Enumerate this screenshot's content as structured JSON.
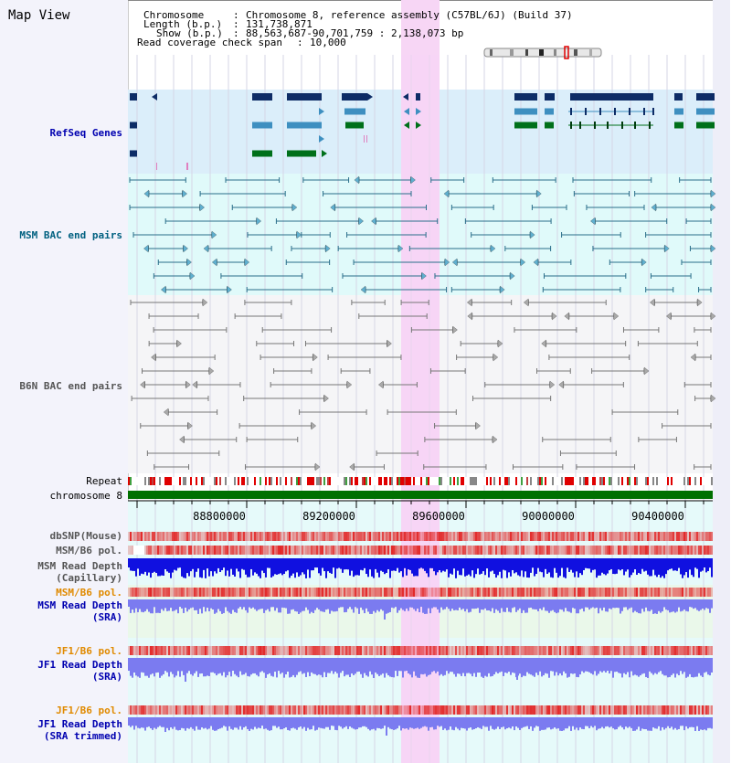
{
  "app": {
    "title": "Map View"
  },
  "info": {
    "chromosome_key": "Chromosome",
    "chromosome_value": "Chromosome 8, reference assembly (C57BL/6J) (Build 37)",
    "length_key": "Length (b.p.)",
    "length_value": "131,738,871",
    "show_key": "Show (b.p.)",
    "show_value": "88,563,687-90,701,759 : 2,138,073 bp",
    "coverage_key": "Read coverage check span",
    "coverage_value": "10,000"
  },
  "tracks": {
    "refseq": "RefSeq Genes",
    "msm_bac": "MSM BAC end pairs",
    "b6n_bac": "B6N BAC end pairs",
    "repeat": "Repeat",
    "chromosome": "chromosome 8",
    "dbsnp": "dbSNP(Mouse)",
    "msm_b6_pol_1": "MSM/B6 pol.",
    "msm_depth_cap_1": "MSM Read Depth",
    "msm_depth_cap_2": "(Capillary)",
    "msm_b6_pol_2": "MSM/B6 pol.",
    "msm_depth_sra_1": "MSM Read Depth",
    "msm_depth_sra_2": "(SRA)",
    "jf1_b6_pol_1": "JF1/B6 pol.",
    "jf1_depth_sra_1": "JF1 Read Depth",
    "jf1_depth_sra_2": "(SRA)",
    "jf1_b6_pol_2": "JF1/B6 pol.",
    "jf1_depth_trim_1": "JF1 Read Depth",
    "jf1_depth_trim_2": "(SRA trimmed)"
  },
  "ruler": {
    "ticks": [
      "88800000",
      "89200000",
      "89600000",
      "90000000",
      "90400000"
    ]
  },
  "colors": {
    "refseq_bg": "#dbeefa",
    "msm_bg": "#e0fafa",
    "b6n_bg": "#f5f5f7",
    "highlight": "#f7d6f5",
    "refseq_dark": "#0d2c66",
    "refseq_mid": "#3e8fc0",
    "refseq_green": "#00701a",
    "msm_line": "#2a6e8a",
    "b6n_line": "#777777",
    "chromosome_bar": "#007000",
    "depth_blue": "#1010e0",
    "depth_light": "#7b7bf0",
    "pol_red": "#e23a3a",
    "label_blue": "#0000b0",
    "label_teal": "#006080",
    "label_orange": "#e08a00"
  }
}
